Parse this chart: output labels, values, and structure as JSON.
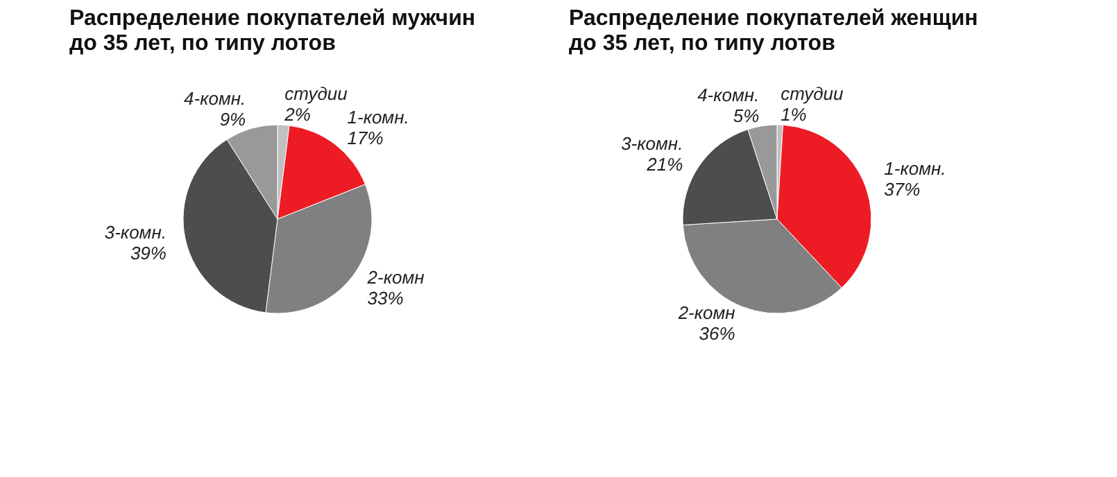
{
  "chart_data": [
    {
      "type": "pie",
      "title": "Распределение покупателей мужчин до 35 лет, по типу лотов",
      "categories": [
        "студии",
        "1-комн.",
        "2-комн",
        "3-комн.",
        "4-комн."
      ],
      "values": [
        2,
        17,
        33,
        39,
        9
      ],
      "value_labels": [
        "2%",
        "17%",
        "33%",
        "39%",
        "9%"
      ],
      "colors": [
        "#c0c0c0",
        "#ed1c24",
        "#808080",
        "#4d4d4d",
        "#999999"
      ]
    },
    {
      "type": "pie",
      "title": "Распределение покупателей женщин до 35 лет, по типу лотов",
      "categories": [
        "студии",
        "1-комн.",
        "2-комн",
        "3-комн.",
        "4-комн."
      ],
      "values": [
        1,
        37,
        36,
        21,
        5
      ],
      "value_labels": [
        "1%",
        "37%",
        "36%",
        "21%",
        "5%"
      ],
      "colors": [
        "#c0c0c0",
        "#ed1c24",
        "#808080",
        "#4d4d4d",
        "#999999"
      ]
    }
  ]
}
